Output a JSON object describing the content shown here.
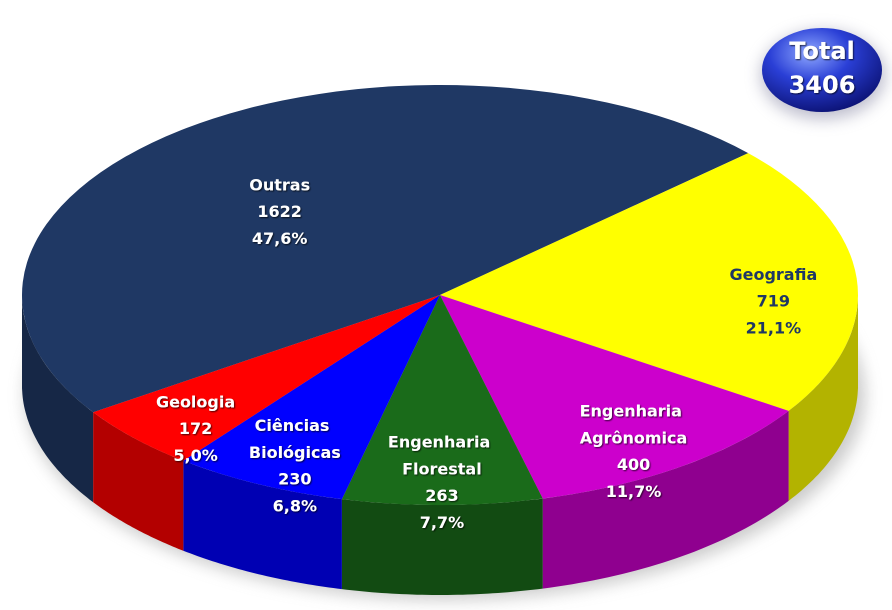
{
  "chart_data": {
    "type": "pie3d",
    "categories": [
      "Outras",
      "Geografia",
      "Engenharia Agrônomica",
      "Engenharia Florestal",
      "Ciências Biológicas",
      "Geologia"
    ],
    "values": [
      1622,
      719,
      400,
      263,
      230,
      172
    ],
    "percent_labels": [
      "47,6%",
      "21,1%",
      "11,7%",
      "7,7%",
      "6,8%",
      "5,0%"
    ],
    "colors": [
      "#1f3864",
      "#ffff00",
      "#cc00cc",
      "#1a6b1a",
      "#0000ff",
      "#ff0000"
    ],
    "total_label": "Total",
    "total": 3406
  }
}
